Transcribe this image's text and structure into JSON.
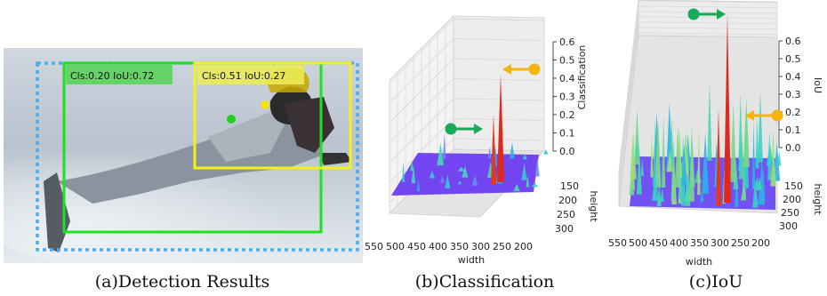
{
  "panel_a": {
    "caption": "(a)Detection Results",
    "label_green": "Cls:0.20 IoU:0.72",
    "label_yellow": "Cls:0.51 IoU:0.27",
    "colors": {
      "green_box": "#1fe01f",
      "yellow_box": "#f2f21a",
      "dashed_box": "#4aaee8"
    }
  },
  "chart_data": [
    {
      "type": "3d-surface",
      "title": "(b)Classification",
      "xlabel": "width",
      "ylabel": "height",
      "zlabel": "Classification",
      "x_ticks": [
        "550",
        "500",
        "450",
        "400",
        "350",
        "300",
        "250",
        "200"
      ],
      "y_ticks": [
        "150",
        "200",
        "250",
        "300"
      ],
      "z_ticks": [
        "0.0",
        "0.1",
        "0.2",
        "0.3",
        "0.4",
        "0.5",
        "0.6"
      ],
      "zlim": [
        0,
        0.6
      ],
      "highlights": [
        {
          "marker": "green",
          "approx_value": 0.2
        },
        {
          "marker": "orange",
          "approx_value": 0.5
        }
      ]
    },
    {
      "type": "3d-surface",
      "title": "(c)IoU",
      "xlabel": "width",
      "ylabel": "height",
      "zlabel": "IoU",
      "x_ticks": [
        "550",
        "500",
        "450",
        "400",
        "350",
        "300",
        "250",
        "200"
      ],
      "y_ticks": [
        "150",
        "200",
        "250",
        "300"
      ],
      "z_ticks": [
        "0.0",
        "0.1",
        "0.2",
        "0.3",
        "0.4",
        "0.5",
        "0.6"
      ],
      "zlim": [
        0,
        0.6
      ],
      "highlights": [
        {
          "marker": "green",
          "approx_value": 0.72
        },
        {
          "marker": "orange",
          "approx_value": 0.27
        }
      ]
    }
  ]
}
